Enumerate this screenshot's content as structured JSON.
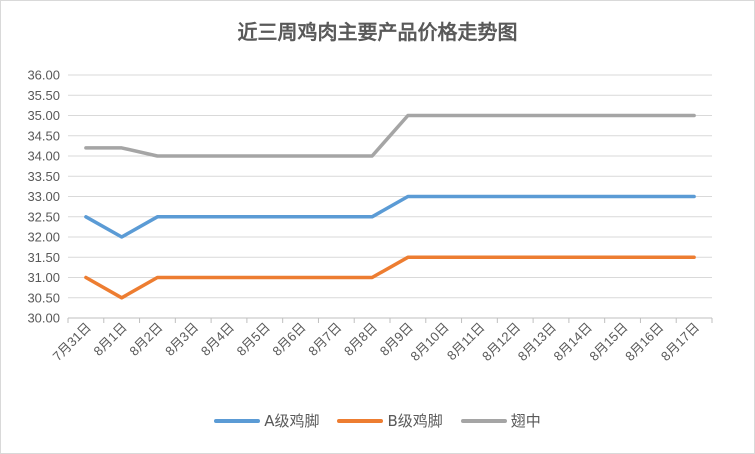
{
  "chart_data": {
    "type": "line",
    "title": "近三周鸡肉主要产品价格走势图",
    "categories": [
      "7月31日",
      "8月1日",
      "8月2日",
      "8月3日",
      "8月4日",
      "8月5日",
      "8月6日",
      "8月7日",
      "8月8日",
      "8月9日",
      "8月10日",
      "8月11日",
      "8月12日",
      "8月13日",
      "8月14日",
      "8月15日",
      "8月16日",
      "8月17日"
    ],
    "ylim": [
      30,
      36
    ],
    "yticks": [
      "30.00",
      "30.50",
      "31.00",
      "31.50",
      "32.00",
      "32.50",
      "33.00",
      "33.50",
      "34.00",
      "34.50",
      "35.00",
      "35.50",
      "36.00"
    ],
    "grid": true,
    "legend_position": "bottom",
    "series": [
      {
        "name": "A级鸡脚",
        "color": "#5b9bd5",
        "values": [
          32.5,
          32.0,
          32.5,
          32.5,
          32.5,
          32.5,
          32.5,
          32.5,
          32.5,
          33.0,
          33.0,
          33.0,
          33.0,
          33.0,
          33.0,
          33.0,
          33.0,
          33.0
        ]
      },
      {
        "name": "B级鸡脚",
        "color": "#ed7d31",
        "values": [
          31.0,
          30.5,
          31.0,
          31.0,
          31.0,
          31.0,
          31.0,
          31.0,
          31.0,
          31.5,
          31.5,
          31.5,
          31.5,
          31.5,
          31.5,
          31.5,
          31.5,
          31.5
        ]
      },
      {
        "name": "翅中",
        "color": "#a5a5a5",
        "values": [
          34.2,
          34.2,
          34.0,
          34.0,
          34.0,
          34.0,
          34.0,
          34.0,
          34.0,
          35.0,
          35.0,
          35.0,
          35.0,
          35.0,
          35.0,
          35.0,
          35.0,
          35.0
        ]
      }
    ]
  }
}
